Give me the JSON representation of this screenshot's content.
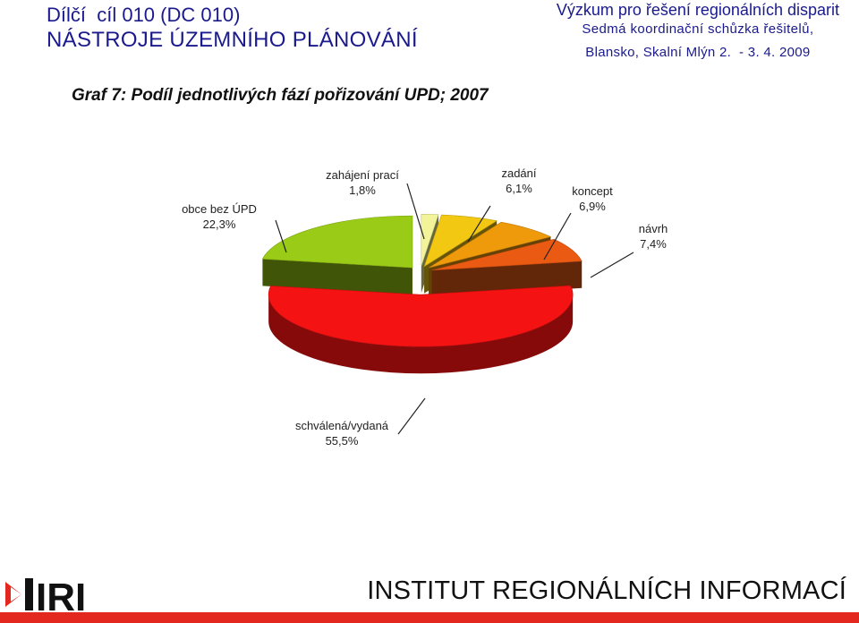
{
  "header": {
    "title_line1": "Dílčí  cíl 010 (DC 010)",
    "title_line2": "NÁSTROJE ÚZEMNÍHO PLÁNOVÁNÍ",
    "project": "Výzkum pro řešení regionálních disparit",
    "meeting": "Sedmá koordinační schůzka řešitelů,",
    "place_date": "Blansko, Skalní Mlýn 2.  - 3. 4. 2009"
  },
  "chart_data": {
    "type": "pie",
    "title": "Graf 7: Podíl jednotlivých fází pořizování UPD; 2007",
    "categories": [
      "zahájení prací",
      "zadání",
      "koncept",
      "návrh",
      "schválená/vydaná",
      "obce bez ÚPD"
    ],
    "values": [
      1.8,
      6.1,
      6.9,
      7.4,
      55.5,
      22.3
    ],
    "value_labels": [
      "1,8%",
      "6,1%",
      "6,9%",
      "7,4%",
      "55,5%",
      "22,3%"
    ],
    "colors": [
      "#f3f39a",
      "#f3c812",
      "#ef9a0a",
      "#ea5a12",
      "#f41212",
      "#9acb16"
    ],
    "exploded": true,
    "three_d": true
  },
  "footer": {
    "logo_text": "IRI",
    "institute": "INSTITUT REGIONÁLNÍCH INFORMACÍ",
    "accent_color": "#e3281f"
  }
}
